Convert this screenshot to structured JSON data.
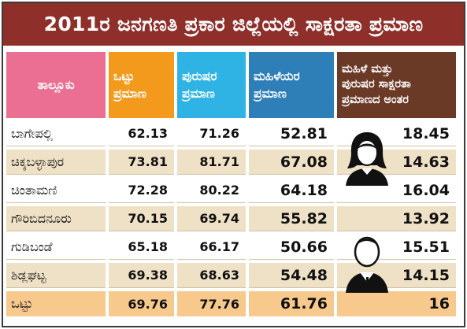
{
  "title": "2011ರ ಜನಗಣತಿ ಪ್ರಕಾರ ಜಿಲ್ಲೆಯಲ್ಲಿ ಸಾಕ್ಷರತಾ ಪ್ರಮಾಣ",
  "headers": {
    "taluk": "ತಾಲ್ಲೂಕು",
    "total": "ಒಟ್ಟು\nಪ್ರಮಾಣ",
    "male": "ಪುರುಷರ\nಪ್ರಮಾಣ",
    "female": "ಮಹಿಳೆಯರ\nಪ್ರಮಾಣ",
    "diff": "ಮಹಿಳೆ ಮತ್ತು\nಪುರುಷರ ಸಾಕ್ಷರತಾ\nಪ್ರಮಾಣದ ಅಂತರ"
  },
  "rows": [
    {
      "name": "ಬಾಗೇಪಲ್ಲಿ",
      "total": "62.13",
      "male": "71.26",
      "female": "52.81",
      "diff": "18.45"
    },
    {
      "name": "ಚಿಕ್ಕಬಳ್ಳಾಪುರ",
      "total": "73.81",
      "male": "81.71",
      "female": "67.08",
      "diff": "14.63"
    },
    {
      "name": "ಚಿಂತಾಮಣಿ",
      "total": "72.28",
      "male": "80.22",
      "female": "64.18",
      "diff": "16.04"
    },
    {
      "name": "ಗೌರಿಬಿದನೂರು",
      "total": "70.15",
      "male": "69.74",
      "female": "55.82",
      "diff": "13.92"
    },
    {
      "name": "ಗುಡಿಬಂಡೆ",
      "total": "65.18",
      "male": "66.17",
      "female": "50.66",
      "diff": "15.51"
    },
    {
      "name": "ಶಿಡ್ಲಘಟ್ಟ",
      "total": "69.38",
      "male": "68.63",
      "female": "54.48",
      "diff": "14.15"
    }
  ],
  "total_row": {
    "name": "ಒಟ್ಟು",
    "total": "69.76",
    "male": "77.76",
    "female": "61.76",
    "diff": "16"
  },
  "colors": {
    "title_bg": "#8e2f2a",
    "taluk_header": "#ea6f93",
    "total_header": "#f39a1d",
    "male_header": "#2fb3e5",
    "female_header": "#2e7eb8",
    "diff_header": "#6b3a27",
    "alt_row": "#efe1c6",
    "total_row": "#f7c98d"
  },
  "icons": [
    "female-avatar-icon",
    "male-avatar-icon"
  ]
}
